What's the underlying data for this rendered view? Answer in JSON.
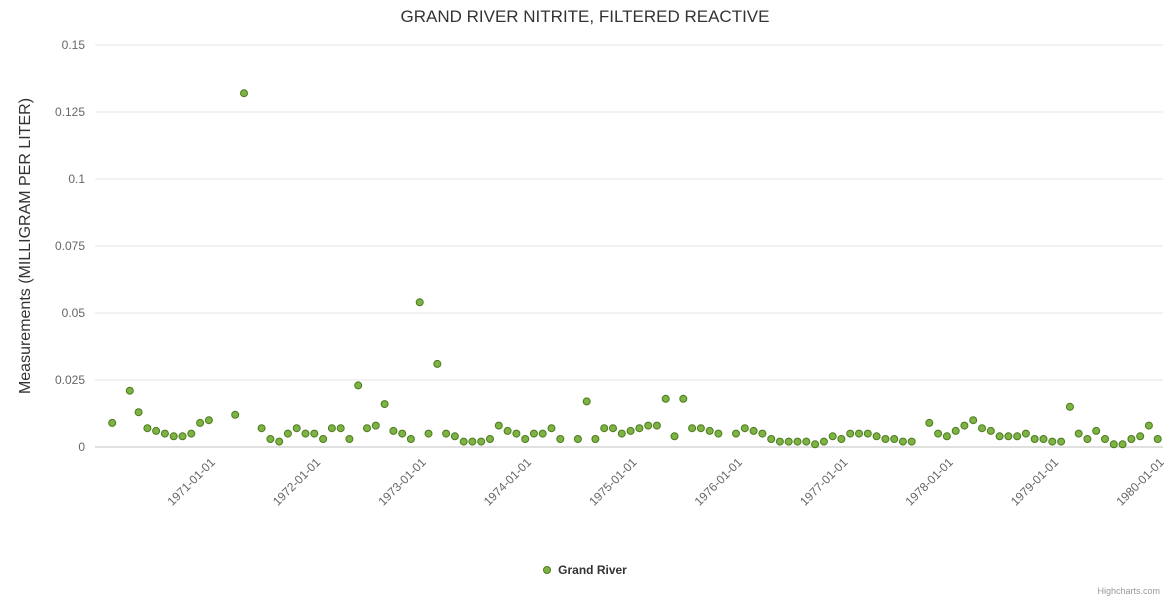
{
  "credits": {
    "label": "Highcharts.com"
  },
  "chart_data": {
    "type": "scatter",
    "title": "GRAND RIVER NITRITE, FILTERED REACTIVE",
    "xlabel": "",
    "ylabel": "Measurements (MILLIGRAM PER LITER)",
    "ylim": [
      0,
      0.15
    ],
    "yticks": [
      0,
      0.025,
      0.05,
      0.075,
      0.1,
      0.125,
      0.15
    ],
    "ytick_labels": [
      "0",
      "0.025",
      "0.05",
      "0.075",
      "0.1",
      "0.125",
      "0.15"
    ],
    "xtick_labels": [
      "1971-01-01",
      "1972-01-01",
      "1973-01-01",
      "1974-01-01",
      "1975-01-01",
      "1976-01-01",
      "1977-01-01",
      "1978-01-01",
      "1979-01-01",
      "1980-01-01"
    ],
    "x_range_years": [
      1969.95,
      1980.08
    ],
    "grid": true,
    "legend": {
      "position": "bottom-center"
    },
    "colors": {
      "marker_fill": "#7cb342",
      "marker_stroke": "#4c7a1e",
      "grid_line": "#e6e6e6",
      "axis_line": "#c0c0c0",
      "tick_label": "#666666",
      "title": "#333333"
    },
    "series": [
      {
        "name": "Grand River",
        "points": [
          [
            "1970-02",
            0.009
          ],
          [
            "1970-04",
            0.021
          ],
          [
            "1970-05",
            0.013
          ],
          [
            "1970-06",
            0.007
          ],
          [
            "1970-07",
            0.006
          ],
          [
            "1970-08",
            0.005
          ],
          [
            "1970-09",
            0.004
          ],
          [
            "1970-10",
            0.004
          ],
          [
            "1970-11",
            0.005
          ],
          [
            "1970-12",
            0.009
          ],
          [
            "1971-01",
            0.01
          ],
          [
            "1971-04",
            0.012
          ],
          [
            "1971-05",
            0.132
          ],
          [
            "1971-07",
            0.007
          ],
          [
            "1971-08",
            0.003
          ],
          [
            "1971-09",
            0.002
          ],
          [
            "1971-10",
            0.005
          ],
          [
            "1971-11",
            0.007
          ],
          [
            "1971-12",
            0.005
          ],
          [
            "1972-01",
            0.005
          ],
          [
            "1972-02",
            0.003
          ],
          [
            "1972-03",
            0.007
          ],
          [
            "1972-04",
            0.007
          ],
          [
            "1972-05",
            0.003
          ],
          [
            "1972-06",
            0.023
          ],
          [
            "1972-07",
            0.007
          ],
          [
            "1972-08",
            0.008
          ],
          [
            "1972-09",
            0.016
          ],
          [
            "1972-10",
            0.006
          ],
          [
            "1972-11",
            0.005
          ],
          [
            "1972-12",
            0.003
          ],
          [
            "1973-01",
            0.054
          ],
          [
            "1973-02",
            0.005
          ],
          [
            "1973-03",
            0.031
          ],
          [
            "1973-04",
            0.005
          ],
          [
            "1973-05",
            0.004
          ],
          [
            "1973-06",
            0.002
          ],
          [
            "1973-07",
            0.002
          ],
          [
            "1973-08",
            0.002
          ],
          [
            "1973-09",
            0.003
          ],
          [
            "1973-10",
            0.008
          ],
          [
            "1973-11",
            0.006
          ],
          [
            "1973-12",
            0.005
          ],
          [
            "1974-01",
            0.003
          ],
          [
            "1974-02",
            0.005
          ],
          [
            "1974-03",
            0.005
          ],
          [
            "1974-04",
            0.007
          ],
          [
            "1974-05",
            0.003
          ],
          [
            "1974-07",
            0.003
          ],
          [
            "1974-08",
            0.017
          ],
          [
            "1974-09",
            0.003
          ],
          [
            "1974-10",
            0.007
          ],
          [
            "1974-11",
            0.007
          ],
          [
            "1974-12",
            0.005
          ],
          [
            "1975-01",
            0.006
          ],
          [
            "1975-02",
            0.007
          ],
          [
            "1975-03",
            0.008
          ],
          [
            "1975-04",
            0.008
          ],
          [
            "1975-05",
            0.018
          ],
          [
            "1975-06",
            0.004
          ],
          [
            "1975-07",
            0.018
          ],
          [
            "1975-08",
            0.007
          ],
          [
            "1975-09",
            0.007
          ],
          [
            "1975-10",
            0.006
          ],
          [
            "1975-11",
            0.005
          ],
          [
            "1976-01",
            0.005
          ],
          [
            "1976-02",
            0.007
          ],
          [
            "1976-03",
            0.006
          ],
          [
            "1976-04",
            0.005
          ],
          [
            "1976-05",
            0.003
          ],
          [
            "1976-06",
            0.002
          ],
          [
            "1976-07",
            0.002
          ],
          [
            "1976-08",
            0.002
          ],
          [
            "1976-09",
            0.002
          ],
          [
            "1976-10",
            0.001
          ],
          [
            "1976-11",
            0.002
          ],
          [
            "1976-12",
            0.004
          ],
          [
            "1977-01",
            0.003
          ],
          [
            "1977-02",
            0.005
          ],
          [
            "1977-03",
            0.005
          ],
          [
            "1977-04",
            0.005
          ],
          [
            "1977-05",
            0.004
          ],
          [
            "1977-06",
            0.003
          ],
          [
            "1977-07",
            0.003
          ],
          [
            "1977-08",
            0.002
          ],
          [
            "1977-09",
            0.002
          ],
          [
            "1977-11",
            0.009
          ],
          [
            "1977-12",
            0.005
          ],
          [
            "1978-01",
            0.004
          ],
          [
            "1978-02",
            0.006
          ],
          [
            "1978-03",
            0.008
          ],
          [
            "1978-04",
            0.01
          ],
          [
            "1978-05",
            0.007
          ],
          [
            "1978-06",
            0.006
          ],
          [
            "1978-07",
            0.004
          ],
          [
            "1978-08",
            0.004
          ],
          [
            "1978-09",
            0.004
          ],
          [
            "1978-10",
            0.005
          ],
          [
            "1978-11",
            0.003
          ],
          [
            "1978-12",
            0.003
          ],
          [
            "1979-01",
            0.002
          ],
          [
            "1979-02",
            0.002
          ],
          [
            "1979-03",
            0.015
          ],
          [
            "1979-04",
            0.005
          ],
          [
            "1979-05",
            0.003
          ],
          [
            "1979-06",
            0.006
          ],
          [
            "1979-07",
            0.003
          ],
          [
            "1979-08",
            0.001
          ],
          [
            "1979-09",
            0.001
          ],
          [
            "1979-10",
            0.003
          ],
          [
            "1979-11",
            0.004
          ],
          [
            "1979-12",
            0.008
          ],
          [
            "1980-01",
            0.003
          ]
        ]
      }
    ]
  }
}
